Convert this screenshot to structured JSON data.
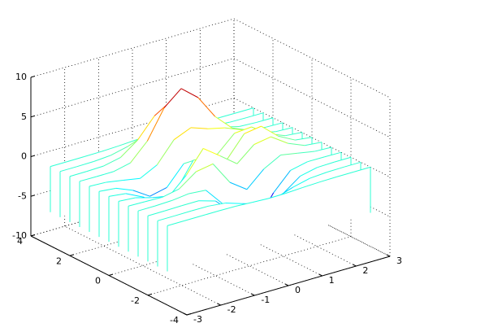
{
  "chart_data": {
    "type": "waterfall",
    "x": [
      -3,
      -2.5,
      -2,
      -1.5,
      -1,
      -0.5,
      0,
      0.5,
      1,
      1.5,
      2,
      2.5,
      3
    ],
    "y": [
      -3,
      -2.5,
      -2,
      -1.5,
      -1,
      -0.5,
      0,
      0.5,
      1,
      1.5,
      2,
      2.5,
      3
    ],
    "z": [
      [
        0,
        0,
        0,
        0,
        -0.03,
        -0.14,
        -0.24,
        -0.22,
        -0.11,
        -0.03,
        0,
        0,
        0
      ],
      [
        0,
        0,
        0.02,
        0,
        -0.23,
        -0.92,
        -1.57,
        -1.41,
        -0.69,
        -0.18,
        -0.03,
        0,
        0
      ],
      [
        0,
        0.01,
        0.05,
        0.05,
        -0.59,
        -2.64,
        -4.75,
        -4.34,
        -2.1,
        -0.53,
        -0.06,
        0,
        0
      ],
      [
        0,
        0.01,
        0.08,
        0.33,
        0.15,
        -2.19,
        -5.68,
        -5.76,
        -2.64,
        -0.44,
        0.04,
        0.03,
        0
      ],
      [
        -0.01,
        -0.06,
        -0.13,
        0.3,
        1.86,
        2.23,
        -0.72,
        -2.22,
        -0.27,
        0.88,
        0.5,
        0.11,
        0.01
      ],
      [
        -0.03,
        -0.2,
        -0.8,
        -1.21,
        0.8,
        3.55,
        2,
        0.39,
        2.2,
        2.56,
        1.12,
        0.24,
        0.03
      ],
      [
        -0.04,
        -0.3,
        -1.33,
        -2.77,
        -1.65,
        1.48,
        0.98,
        0.38,
        2.94,
        3.27,
        1.41,
        0.3,
        0.03
      ],
      [
        -0.03,
        -0.25,
        -1.12,
        -2.49,
        -2,
        0.39,
        0.46,
        0.38,
        2.38,
        2.56,
        1.09,
        0.23,
        0.03
      ],
      [
        -0.01,
        -0.11,
        -0.48,
        -0.86,
        0.23,
        2.79,
        3.69,
        2.94,
        2.43,
        1.58,
        0.58,
        0.11,
        0.01
      ],
      [
        0,
        -0.02,
        -0.01,
        0.48,
        2.61,
        6.2,
        8,
        6.25,
        3.25,
        1.19,
        0.29,
        0.05,
        0
      ],
      [
        0,
        0.01,
        0.08,
        0.55,
        2.1,
        4.55,
        5.85,
        4.56,
        2.21,
        0.68,
        0.13,
        0.02,
        0
      ],
      [
        0,
        0,
        0.03,
        0.19,
        0.69,
        1.47,
        1.88,
        1.47,
        0.7,
        0.2,
        0.04,
        0,
        0
      ],
      [
        0,
        0,
        0.01,
        0.03,
        0.11,
        0.23,
        0.3,
        0.23,
        0.11,
        0.03,
        0.01,
        0,
        0
      ]
    ],
    "xlim": [
      -3,
      3
    ],
    "ylim": [
      -4,
      4
    ],
    "zlim": [
      -10,
      10
    ],
    "xticks": [
      -3,
      -2,
      -1,
      0,
      1,
      2,
      3
    ],
    "yticks": [
      -4,
      -2,
      0,
      2,
      4
    ],
    "zticks": [
      -10,
      -5,
      0,
      5,
      10
    ],
    "grid": true,
    "colormap": "jet"
  }
}
